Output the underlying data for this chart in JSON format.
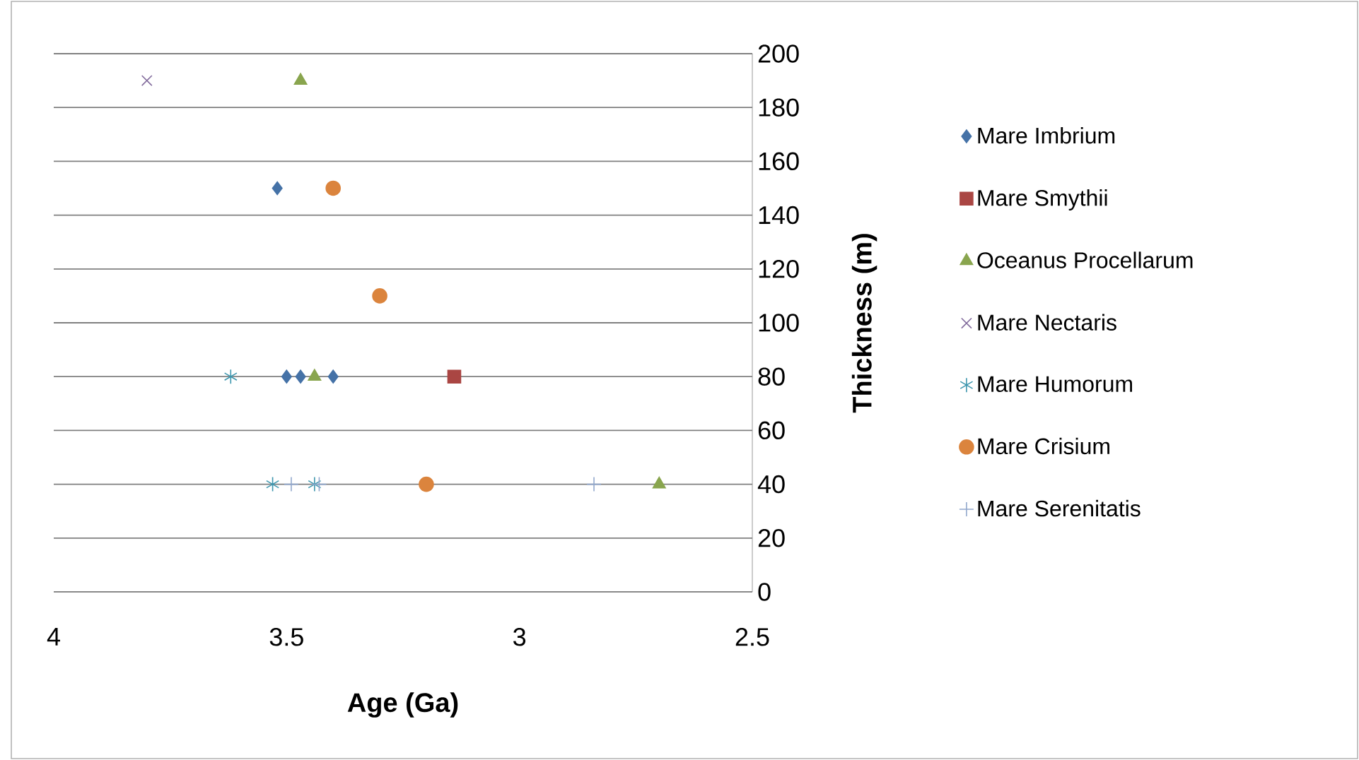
{
  "chart_data": {
    "type": "scatter",
    "xlabel": "Age (Ga)",
    "ylabel": "Thickness (m)",
    "xlim": [
      4,
      2.5
    ],
    "xticks": [
      4,
      3.5,
      3,
      2.5
    ],
    "ylim": [
      0,
      200
    ],
    "yticks": [
      0,
      20,
      40,
      60,
      80,
      100,
      120,
      140,
      160,
      180,
      200
    ],
    "grid": "y",
    "legend": "right",
    "series": [
      {
        "name": "Mare Imbrium",
        "color": "#4572a7",
        "marker": "diamond",
        "x": [
          3.52,
          3.5,
          3.47,
          3.4
        ],
        "values": [
          150,
          80,
          80,
          80
        ]
      },
      {
        "name": "Mare Smythii",
        "color": "#aa4643",
        "marker": "square",
        "x": [
          3.14
        ],
        "values": [
          80
        ]
      },
      {
        "name": "Oceanus Procellarum",
        "color": "#89a54e",
        "marker": "triangle",
        "x": [
          3.47,
          3.44,
          2.7
        ],
        "values": [
          190,
          80,
          40
        ]
      },
      {
        "name": "Mare Nectaris",
        "color": "#80699b",
        "marker": "cross",
        "x": [
          3.8
        ],
        "values": [
          190
        ]
      },
      {
        "name": "Mare Humorum",
        "color": "#3d96ae",
        "x": [
          3.62,
          3.53,
          3.44
        ],
        "values": [
          80,
          40,
          40
        ]
      },
      {
        "name": "Mare Crisium",
        "color": "#db843d",
        "marker": "circle",
        "x": [
          3.4,
          3.3,
          3.2
        ],
        "values": [
          150,
          110,
          40
        ]
      },
      {
        "name": "Mare Serenitatis",
        "color": "#92a8cd",
        "marker": "plus",
        "x": [
          3.49,
          3.43,
          2.84
        ],
        "values": [
          40,
          40,
          40
        ]
      }
    ]
  }
}
